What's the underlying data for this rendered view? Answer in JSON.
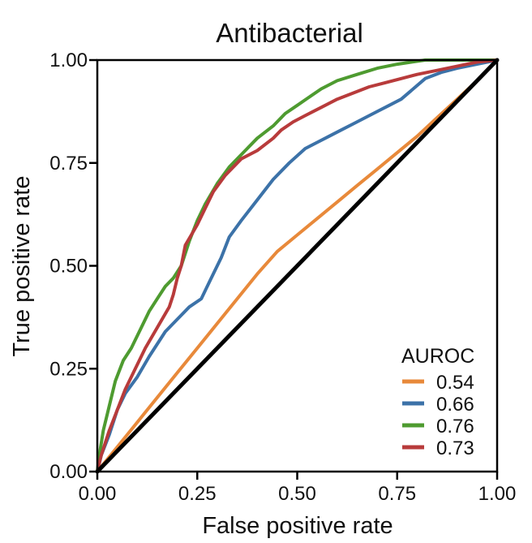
{
  "chart_data": {
    "type": "line",
    "title": "Antibacterial",
    "xlabel": "False positive rate",
    "ylabel": "True positive rate",
    "xlim": [
      0,
      1
    ],
    "ylim": [
      0,
      1
    ],
    "xticks": [
      0,
      0.25,
      0.5,
      0.75,
      1
    ],
    "yticks": [
      0,
      0.25,
      0.5,
      0.75,
      1
    ],
    "xtick_labels": [
      "0.00",
      "0.25",
      "0.50",
      "0.75",
      "1.00"
    ],
    "ytick_labels": [
      "0.00",
      "0.25",
      "0.50",
      "0.75",
      "1.00"
    ],
    "grid": false,
    "legend": {
      "title": "AUROC",
      "placement": "bottom-right"
    },
    "series": [
      {
        "name": "0.54",
        "color": "#e8893a",
        "points": [
          [
            0,
            0
          ],
          [
            0.05,
            0.06
          ],
          [
            0.1,
            0.12
          ],
          [
            0.15,
            0.18
          ],
          [
            0.2,
            0.24
          ],
          [
            0.25,
            0.3
          ],
          [
            0.3,
            0.36
          ],
          [
            0.35,
            0.42
          ],
          [
            0.4,
            0.48
          ],
          [
            0.45,
            0.535
          ],
          [
            0.5,
            0.575
          ],
          [
            0.55,
            0.615
          ],
          [
            0.6,
            0.655
          ],
          [
            0.65,
            0.695
          ],
          [
            0.7,
            0.735
          ],
          [
            0.75,
            0.775
          ],
          [
            0.8,
            0.815
          ],
          [
            0.85,
            0.86
          ],
          [
            0.9,
            0.905
          ],
          [
            0.95,
            0.95
          ],
          [
            1,
            1
          ]
        ]
      },
      {
        "name": "0.66",
        "color": "#3c72a8",
        "points": [
          [
            0,
            0
          ],
          [
            0.01,
            0.04
          ],
          [
            0.03,
            0.09
          ],
          [
            0.05,
            0.15
          ],
          [
            0.07,
            0.19
          ],
          [
            0.1,
            0.23
          ],
          [
            0.13,
            0.28
          ],
          [
            0.17,
            0.34
          ],
          [
            0.2,
            0.37
          ],
          [
            0.23,
            0.4
          ],
          [
            0.26,
            0.42
          ],
          [
            0.28,
            0.46
          ],
          [
            0.31,
            0.52
          ],
          [
            0.33,
            0.57
          ],
          [
            0.36,
            0.61
          ],
          [
            0.4,
            0.66
          ],
          [
            0.44,
            0.71
          ],
          [
            0.48,
            0.75
          ],
          [
            0.52,
            0.785
          ],
          [
            0.55,
            0.8
          ],
          [
            0.58,
            0.815
          ],
          [
            0.61,
            0.83
          ],
          [
            0.64,
            0.845
          ],
          [
            0.67,
            0.86
          ],
          [
            0.7,
            0.875
          ],
          [
            0.73,
            0.89
          ],
          [
            0.76,
            0.905
          ],
          [
            0.79,
            0.93
          ],
          [
            0.82,
            0.955
          ],
          [
            0.86,
            0.97
          ],
          [
            0.9,
            0.98
          ],
          [
            0.95,
            0.99
          ],
          [
            1,
            1
          ]
        ]
      },
      {
        "name": "0.76",
        "color": "#4e9b30",
        "points": [
          [
            0,
            0
          ],
          [
            0.005,
            0.04
          ],
          [
            0.015,
            0.1
          ],
          [
            0.03,
            0.16
          ],
          [
            0.045,
            0.22
          ],
          [
            0.065,
            0.27
          ],
          [
            0.085,
            0.3
          ],
          [
            0.11,
            0.35
          ],
          [
            0.13,
            0.39
          ],
          [
            0.15,
            0.42
          ],
          [
            0.17,
            0.45
          ],
          [
            0.19,
            0.47
          ],
          [
            0.21,
            0.5
          ],
          [
            0.23,
            0.56
          ],
          [
            0.25,
            0.61
          ],
          [
            0.27,
            0.65
          ],
          [
            0.3,
            0.7
          ],
          [
            0.33,
            0.74
          ],
          [
            0.37,
            0.78
          ],
          [
            0.4,
            0.81
          ],
          [
            0.44,
            0.84
          ],
          [
            0.47,
            0.87
          ],
          [
            0.5,
            0.89
          ],
          [
            0.53,
            0.91
          ],
          [
            0.56,
            0.93
          ],
          [
            0.6,
            0.95
          ],
          [
            0.65,
            0.965
          ],
          [
            0.7,
            0.98
          ],
          [
            0.75,
            0.99
          ],
          [
            0.82,
            1.0
          ],
          [
            0.9,
            1.0
          ],
          [
            1,
            1
          ]
        ]
      },
      {
        "name": "0.73",
        "color": "#b83b3b",
        "points": [
          [
            0,
            0
          ],
          [
            0.01,
            0.04
          ],
          [
            0.03,
            0.1
          ],
          [
            0.05,
            0.15
          ],
          [
            0.07,
            0.2
          ],
          [
            0.09,
            0.24
          ],
          [
            0.12,
            0.3
          ],
          [
            0.15,
            0.35
          ],
          [
            0.18,
            0.4
          ],
          [
            0.19,
            0.43
          ],
          [
            0.2,
            0.47
          ],
          [
            0.21,
            0.5
          ],
          [
            0.22,
            0.55
          ],
          [
            0.235,
            0.575
          ],
          [
            0.25,
            0.6
          ],
          [
            0.27,
            0.64
          ],
          [
            0.29,
            0.68
          ],
          [
            0.32,
            0.72
          ],
          [
            0.36,
            0.76
          ],
          [
            0.4,
            0.78
          ],
          [
            0.44,
            0.81
          ],
          [
            0.46,
            0.83
          ],
          [
            0.49,
            0.85
          ],
          [
            0.52,
            0.865
          ],
          [
            0.56,
            0.885
          ],
          [
            0.6,
            0.905
          ],
          [
            0.64,
            0.92
          ],
          [
            0.68,
            0.935
          ],
          [
            0.72,
            0.945
          ],
          [
            0.76,
            0.955
          ],
          [
            0.8,
            0.965
          ],
          [
            0.85,
            0.975
          ],
          [
            0.9,
            0.985
          ],
          [
            0.95,
            0.995
          ],
          [
            1,
            1
          ]
        ]
      },
      {
        "name": "",
        "color": "#000000",
        "points": [
          [
            0,
            0
          ],
          [
            1,
            1
          ]
        ]
      }
    ]
  }
}
